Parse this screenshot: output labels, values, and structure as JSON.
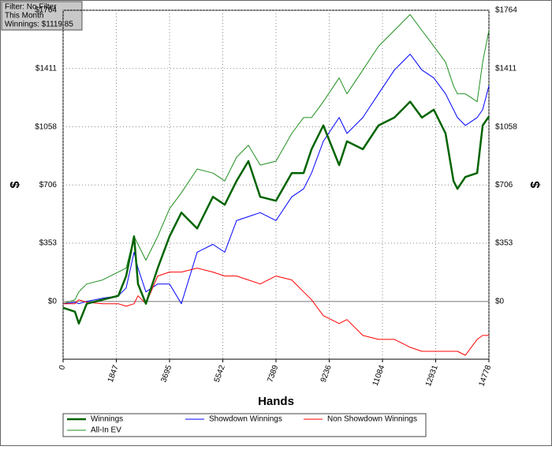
{
  "chart_data": {
    "type": "line",
    "info_lines": [
      "Filter: No Filter",
      "This Month",
      "Winnings: $1119.85"
    ],
    "xlabel": "Hands",
    "ylabel": "$",
    "x": [
      0,
      411,
      547,
      821,
      1368,
      1916,
      2190,
      2463,
      2600,
      2874,
      3284,
      3695,
      4106,
      4653,
      5200,
      5611,
      6021,
      6432,
      6843,
      7390,
      7937,
      8348,
      8622,
      9032,
      9580,
      9853,
      10401,
      10948,
      11496,
      12043,
      12453,
      12864,
      13274,
      13548,
      13685,
      13959,
      14369,
      14561,
      14778
    ],
    "series": [
      {
        "name": "Winnings",
        "color": "#006400",
        "width": 2.5,
        "values": [
          -38,
          -62,
          -134,
          -14,
          10,
          34,
          154,
          394,
          106,
          -14,
          202,
          394,
          538,
          442,
          634,
          586,
          730,
          850,
          634,
          610,
          778,
          778,
          922,
          1066,
          826,
          970,
          922,
          1066,
          1114,
          1210,
          1114,
          1162,
          1018,
          730,
          682,
          754,
          778,
          1066,
          1120
        ]
      },
      {
        "name": "Showdown Winnings",
        "color": "#0000ff",
        "width": 1,
        "values": [
          -14,
          -5,
          -14,
          0,
          19,
          34,
          82,
          298,
          202,
          58,
          106,
          106,
          -14,
          298,
          346,
          298,
          490,
          514,
          538,
          490,
          634,
          682,
          778,
          970,
          1114,
          1018,
          1114,
          1258,
          1402,
          1498,
          1402,
          1354,
          1258,
          1162,
          1114,
          1066,
          1114,
          1162,
          1306
        ]
      },
      {
        "name": "Non Showdown Winnings",
        "color": "#ff0000",
        "width": 1,
        "values": [
          -14,
          -14,
          10,
          -5,
          -14,
          -14,
          -29,
          -14,
          34,
          -14,
          154,
          178,
          178,
          202,
          178,
          154,
          154,
          130,
          106,
          154,
          130,
          58,
          10,
          -86,
          -134,
          -110,
          -206,
          -230,
          -230,
          -278,
          -302,
          -302,
          -302,
          -302,
          -302,
          -326,
          -230,
          -206,
          -206
        ]
      },
      {
        "name": "All-In EV",
        "color": "#1f8f1f",
        "width": 1,
        "values": [
          -14,
          10,
          58,
          106,
          130,
          178,
          202,
          394,
          346,
          250,
          394,
          562,
          658,
          802,
          778,
          730,
          874,
          946,
          826,
          850,
          1018,
          1114,
          1114,
          1210,
          1354,
          1258,
          1402,
          1546,
          1642,
          1738,
          1642,
          1546,
          1450,
          1306,
          1258,
          1258,
          1210,
          1450,
          1642
        ]
      }
    ],
    "xlim": [
      0,
      14778
    ],
    "xticks": [
      0,
      1847,
      3695,
      5542,
      7389,
      9236,
      11084,
      12931,
      14778
    ],
    "ylim": [
      -350,
      1764
    ],
    "yticks": [
      {
        "value": 0,
        "label": "$0"
      },
      {
        "value": 353,
        "label": "$353"
      },
      {
        "value": 706,
        "label": "$706"
      },
      {
        "value": 1058,
        "label": "$1058"
      },
      {
        "value": 1411,
        "label": "$1411"
      },
      {
        "value": 1764,
        "label": "$1764"
      }
    ],
    "grid": true
  }
}
